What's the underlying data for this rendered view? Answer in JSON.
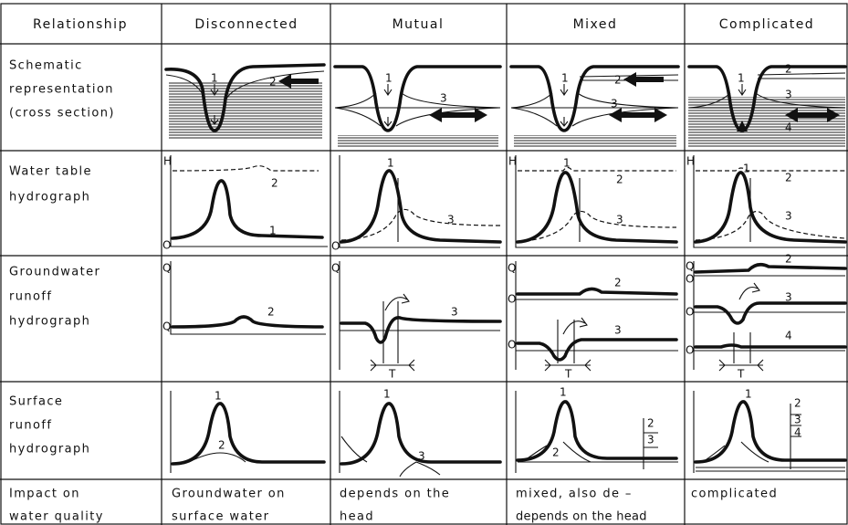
{
  "table": {
    "header": [
      "Relationship",
      "Disconnected",
      "Mutual",
      "Mixed",
      "Complicated"
    ],
    "rows": [
      {
        "label": [
          "Schematic",
          "representation",
          "(cross section)"
        ],
        "cells": [
          [
            "1",
            "2"
          ],
          [
            "1",
            "3"
          ],
          [
            "1",
            "2",
            "3"
          ],
          [
            "1",
            "2",
            "3",
            "4"
          ]
        ]
      },
      {
        "label": [
          "Water table",
          "hydrograph"
        ],
        "cells": [
          [
            "H",
            "2",
            "1",
            "O"
          ],
          [
            "1",
            "3",
            "O"
          ],
          [
            "H",
            "1",
            "2",
            "3"
          ],
          [
            "H",
            "1",
            "2",
            "3"
          ]
        ]
      },
      {
        "label": [
          "Groundwater",
          "runoff",
          "hydrograph"
        ],
        "cells": [
          [
            "Q",
            "Q",
            "2"
          ],
          [
            "Q",
            "3",
            "T"
          ],
          [
            "Q",
            "O",
            "2",
            "O",
            "3",
            "T"
          ],
          [
            "Q",
            "O",
            "2",
            "O",
            "3",
            "O",
            "4",
            "T"
          ]
        ]
      },
      {
        "label": [
          "Surface",
          "runoff",
          "hydrograph"
        ],
        "cells": [
          [
            "1",
            "2"
          ],
          [
            "1",
            "3"
          ],
          [
            "1",
            "2",
            "2",
            "3"
          ],
          [
            "1",
            "2",
            "3",
            "4"
          ]
        ]
      },
      {
        "label": [
          "Impact on",
          "water quality"
        ],
        "cells": [
          [
            "Groundwater on",
            "surface water"
          ],
          [
            "depends on the",
            "head"
          ],
          [
            "mixed, also de –",
            "depends on the head"
          ],
          [
            "complicated"
          ]
        ]
      }
    ]
  }
}
